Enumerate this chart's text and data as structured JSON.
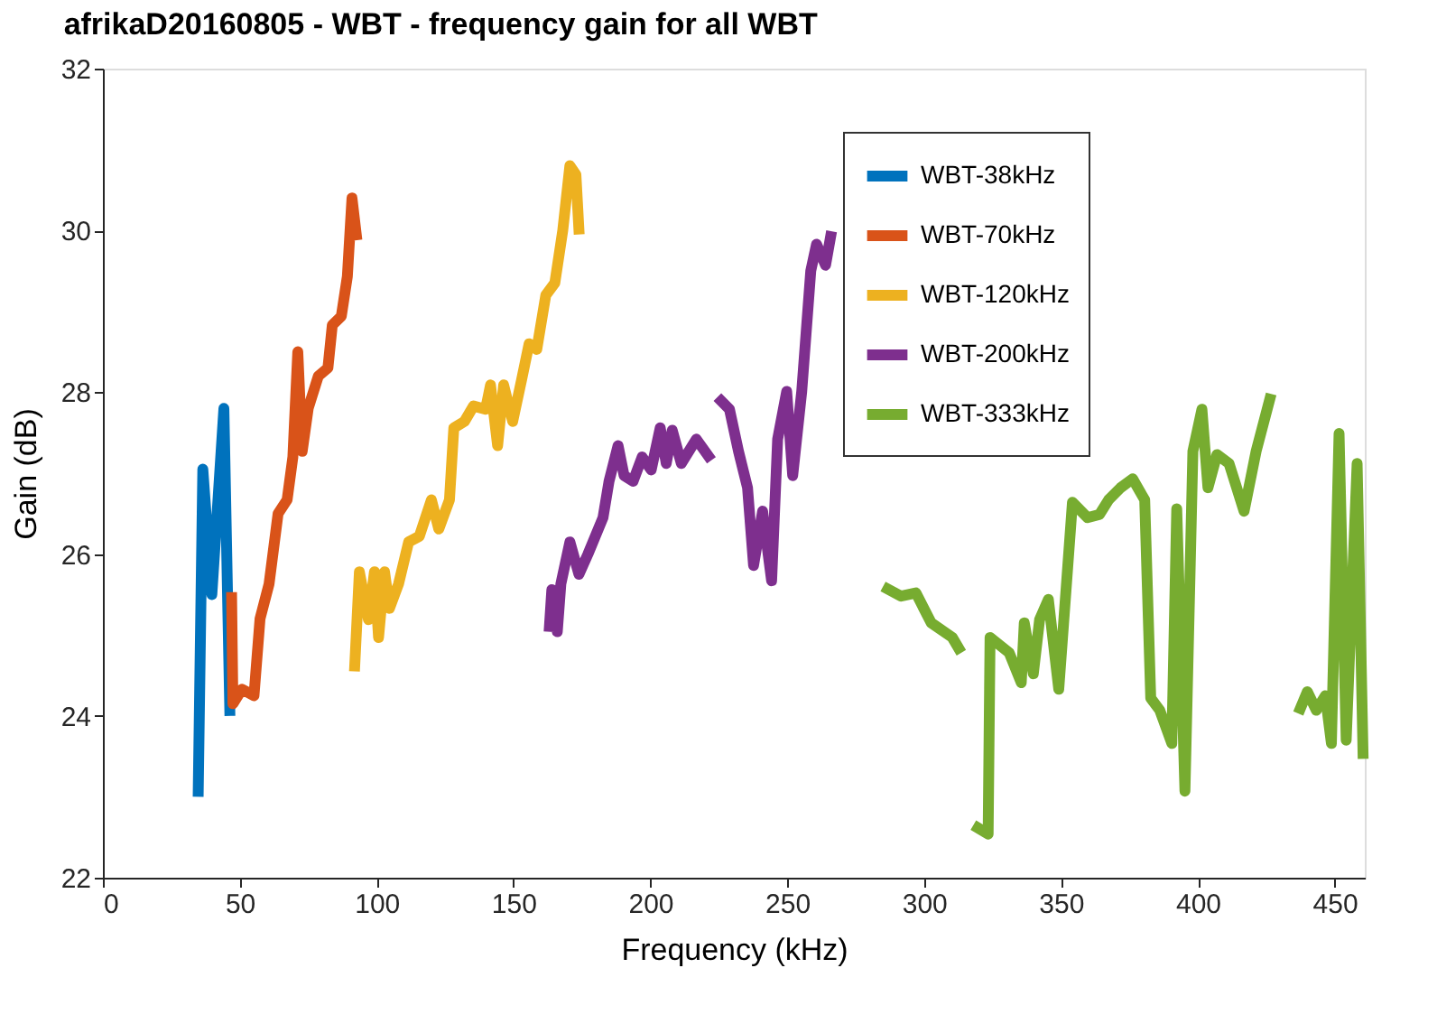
{
  "chart_data": {
    "type": "line",
    "title": "afrikaD20160805 - WBT - frequency gain for all WBT",
    "xlabel": "Frequency (kHz)",
    "ylabel": "Gain (dB)",
    "xlim": [
      0,
      461
    ],
    "xticks": [
      0,
      50,
      100,
      150,
      200,
      250,
      300,
      350,
      400,
      450
    ],
    "ylim": [
      22,
      32
    ],
    "yticks": [
      22,
      24,
      26,
      28,
      30,
      32
    ],
    "grid": false,
    "legend": "top right",
    "line_style": "solid",
    "marker": "none",
    "series": [
      {
        "name": "WBT-38kHz",
        "color": "#0072bd",
        "x": [
          34.8,
          36.5,
          39.8,
          44.2,
          46.4
        ],
        "values": [
          23.0,
          27.05,
          25.5,
          27.8,
          24.0
        ]
      },
      {
        "name": "WBT-70kHz",
        "color": "#d95319",
        "x": [
          47.0,
          47.5,
          50.8,
          55.2,
          57.4,
          60.7,
          64,
          67.3,
          69.4,
          71.2,
          72.8,
          75,
          78.7,
          82.2,
          83.8,
          87.1,
          89.3,
          91,
          92.8
        ],
        "values": [
          25.53,
          24.15,
          24.33,
          24.25,
          25.2,
          25.63,
          26.5,
          26.67,
          27.2,
          28.5,
          27.27,
          27.8,
          28.2,
          28.3,
          28.83,
          28.94,
          29.43,
          30.4,
          29.88
        ]
      },
      {
        "name": "WBT-120kHz",
        "color": "#edb120",
        "x": [
          91.9,
          93.7,
          97,
          99.2,
          100.7,
          102.9,
          104.7,
          108,
          111.7,
          115.6,
          120,
          122.7,
          126.6,
          128.2,
          132.1,
          135.4,
          139.8,
          141.6,
          144.2,
          146.4,
          149.7,
          153,
          155.7,
          158.5,
          161.8,
          165.1,
          168,
          170.6,
          172.8,
          174
        ],
        "values": [
          24.55,
          25.78,
          25.19,
          25.78,
          24.97,
          25.78,
          25.33,
          25.63,
          26.15,
          26.22,
          26.67,
          26.31,
          26.67,
          27.56,
          27.64,
          27.83,
          27.79,
          28.09,
          27.34,
          28.09,
          27.64,
          28.16,
          28.6,
          28.53,
          29.2,
          29.35,
          30.0,
          30.8,
          30.69,
          29.95
        ]
      },
      {
        "name": "WBT-200kHz",
        "color": "#7e2f8e",
        "x": [
          163,
          164,
          166,
          167.3,
          170.6,
          173.9,
          177.2,
          182.7,
          184.9,
          188.2,
          190.4,
          193.7,
          197,
          200.3,
          203.6,
          205.8,
          208,
          211.3,
          216.8,
          222.3,
          223.4,
          224.5,
          228.9,
          232.2,
          235.5,
          237.7,
          241,
          244.3,
          246.5,
          249.8,
          252,
          255.3,
          258.6,
          260.7,
          264,
          266.2
        ],
        "values": [
          25.04,
          25.56,
          25.04,
          25.63,
          26.15,
          25.75,
          26.0,
          26.45,
          26.9,
          27.34,
          26.97,
          26.9,
          27.2,
          27.04,
          27.56,
          27.12,
          27.53,
          27.12,
          27.42,
          27.16,
          null,
          27.94,
          27.79,
          27.27,
          26.82,
          25.86,
          26.53,
          25.67,
          27.42,
          28.01,
          26.97,
          28.01,
          29.5,
          29.83,
          29.57,
          29.99
        ]
      },
      {
        "name": "WBT-333kHz",
        "color": "#77ac30",
        "x": [
          285,
          291.6,
          297,
          302.6,
          310.3,
          313.6,
          316,
          318,
          323.4,
          324.1,
          331.1,
          335.5,
          336.6,
          339.9,
          342.2,
          345.4,
          349.2,
          354.2,
          359.7,
          364.1,
          367.4,
          371.8,
          376.2,
          380.6,
          382.8,
          386.1,
          390.5,
          392.3,
          395.3,
          398.2,
          401.5,
          403.7,
          407,
          411.4,
          416.9,
          421.3,
          426.8,
          431,
          436.7,
          440,
          443.3,
          446.6,
          448.8,
          451.6,
          454.2,
          458.2,
          460.4
        ],
        "values": [
          25.6,
          25.48,
          25.52,
          25.15,
          24.97,
          24.78,
          null,
          22.65,
          22.54,
          24.97,
          24.78,
          24.41,
          25.15,
          24.52,
          25.19,
          25.44,
          24.33,
          26.64,
          26.45,
          26.49,
          26.67,
          26.82,
          26.93,
          26.67,
          24.22,
          24.07,
          23.66,
          26.56,
          23.07,
          27.27,
          27.79,
          26.82,
          27.23,
          27.12,
          26.53,
          27.27,
          27.98,
          null,
          24.03,
          24.3,
          24.07,
          24.25,
          23.66,
          27.49,
          23.7,
          27.12,
          23.47
        ]
      }
    ]
  }
}
